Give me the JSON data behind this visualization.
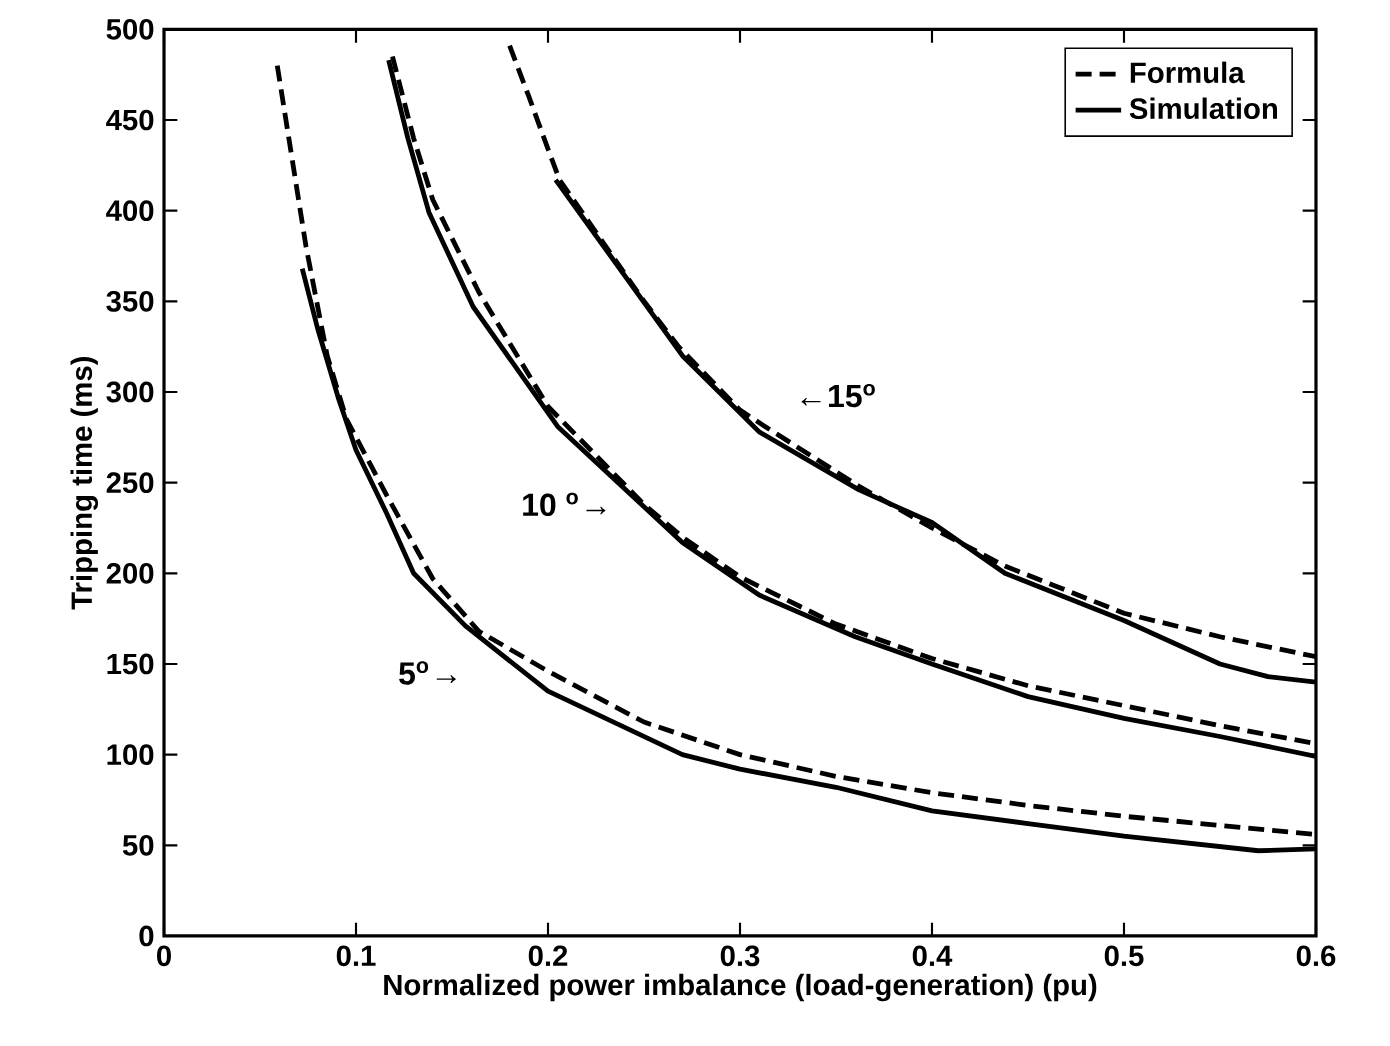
{
  "chart_data": {
    "type": "line",
    "xlabel": "Normalized power imbalance (load-generation) (pu)",
    "ylabel": "Tripping time (ms)",
    "xlim": [
      0,
      0.6
    ],
    "xticks": [
      0,
      0.1,
      0.2,
      0.3,
      0.4,
      0.5,
      0.6
    ],
    "ylim": [
      0,
      500
    ],
    "yticks": [
      0,
      50,
      100,
      150,
      200,
      250,
      300,
      350,
      400,
      450,
      500
    ],
    "grid": false,
    "legend": "top right",
    "series": [
      {
        "name": "Formula",
        "color": "#000000",
        "line_style": "dashed",
        "x": [
          0.059,
          0.074,
          0.085,
          0.095,
          0.116,
          0.14,
          0.164,
          0.2,
          0.25,
          0.3,
          0.35,
          0.4,
          0.45,
          0.5,
          0.55,
          0.6
        ],
        "values": [
          480,
          380,
          320,
          285,
          243,
          197,
          168,
          146,
          118,
          100,
          88,
          79,
          72,
          66,
          61,
          56
        ]
      },
      {
        "name": "Simulation",
        "color": "#000000",
        "line_style": "solid",
        "x": [
          0.072,
          0.08,
          0.091,
          0.1,
          0.116,
          0.13,
          0.157,
          0.2,
          0.27,
          0.3,
          0.35,
          0.4,
          0.45,
          0.5,
          0.57,
          0.6
        ],
        "values": [
          368,
          335,
          296,
          268,
          233,
          200,
          171,
          135,
          100,
          92,
          82,
          69,
          62,
          55,
          47,
          48
        ]
      },
      {
        "color": "#000000",
        "line_style": "dashed",
        "x": [
          0.119,
          0.13,
          0.14,
          0.164,
          0.2,
          0.25,
          0.27,
          0.3,
          0.35,
          0.4,
          0.45,
          0.5,
          0.55,
          0.6
        ],
        "values": [
          485,
          440,
          406,
          355,
          292,
          238,
          220,
          198,
          172,
          153,
          138,
          127,
          116,
          106
        ]
      },
      {
        "color": "#000000",
        "line_style": "solid",
        "x": [
          0.117,
          0.127,
          0.138,
          0.161,
          0.205,
          0.27,
          0.31,
          0.36,
          0.4,
          0.45,
          0.5,
          0.55,
          0.6
        ],
        "values": [
          483,
          440,
          399,
          347,
          281,
          217,
          188,
          165,
          150,
          132,
          120,
          110,
          99
        ]
      },
      {
        "color": "#000000",
        "line_style": "dashed",
        "x": [
          0.18,
          0.19,
          0.2,
          0.206,
          0.25,
          0.268,
          0.3,
          0.313,
          0.362,
          0.4,
          0.438,
          0.5,
          0.55,
          0.6
        ],
        "values": [
          491,
          463,
          434,
          417,
          350,
          325,
          290,
          281,
          248,
          225,
          204,
          178,
          165,
          154
        ]
      },
      {
        "color": "#000000",
        "line_style": "solid",
        "x": [
          0.204,
          0.27,
          0.31,
          0.362,
          0.4,
          0.438,
          0.5,
          0.55,
          0.575,
          0.6
        ],
        "values": [
          417,
          320,
          278,
          246,
          228,
          200,
          174,
          150,
          143,
          140
        ]
      }
    ],
    "annotations": [
      "←15$^{o}$",
      "10 $^{o}$→",
      "5$^{o}$→"
    ]
  }
}
